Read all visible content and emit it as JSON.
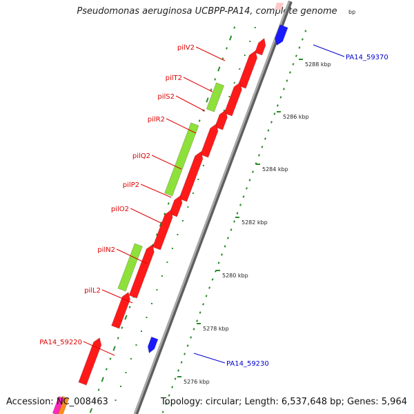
{
  "title": "Pseudomonas aeruginosa UCBPP-PA14, complete genome",
  "accession": "Accession: NC_008463",
  "topology": "Topology: circular; Length: 6,537,648 bp; Genes: 5,964",
  "top_clipped_tick": "bp",
  "colors": {
    "backbone": "#8c8c8c",
    "gene_red": "#ff1a1a",
    "gene_green": "#8ee03a",
    "gene_blue": "#1a1aff",
    "gc_green": "#2a8a2a",
    "label_red": "#dd0000",
    "label_blue": "#0000cc"
  },
  "ticks": [
    "5288 kbp",
    "5286 kbp",
    "5284 kbp",
    "5282 kbp",
    "5280 kbp",
    "5278 kbp",
    "5276 kbp"
  ],
  "gene_labels": [
    {
      "name": "pilV2",
      "color": "red"
    },
    {
      "name": "pilT2",
      "color": "red"
    },
    {
      "name": "pilS2",
      "color": "red"
    },
    {
      "name": "pilR2",
      "color": "red"
    },
    {
      "name": "pilQ2",
      "color": "red"
    },
    {
      "name": "pilP2",
      "color": "red"
    },
    {
      "name": "pilO2",
      "color": "red"
    },
    {
      "name": "pilN2",
      "color": "red"
    },
    {
      "name": "pilL2",
      "color": "red"
    },
    {
      "name": "PA14_59220",
      "color": "red"
    },
    {
      "name": "PA14_59370",
      "color": "blue"
    },
    {
      "name": "PA14_59230",
      "color": "blue"
    }
  ]
}
